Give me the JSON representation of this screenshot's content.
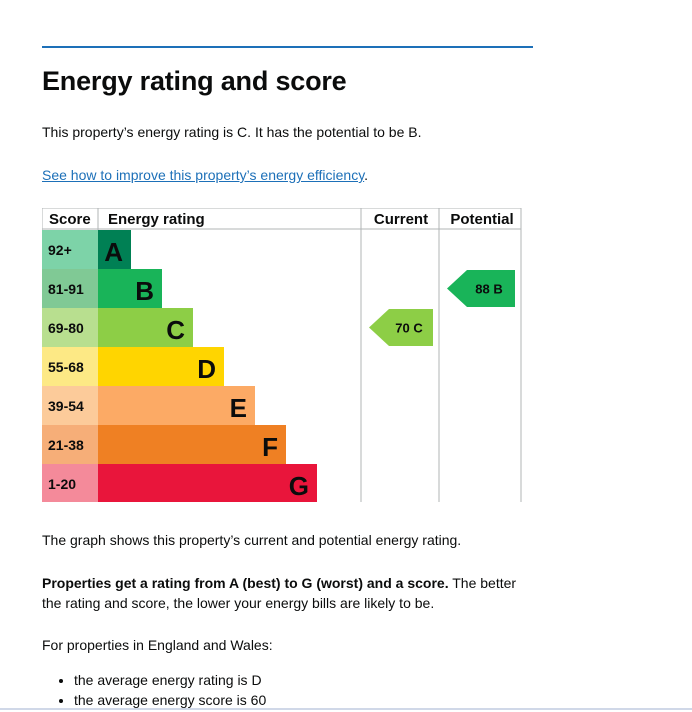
{
  "title": "Energy rating and score",
  "intro": "This property’s energy rating is C. It has the potential to be B.",
  "improve_link": "See how to improve this property’s energy efficiency",
  "improve_link_suffix": ".",
  "graph_caption": "The graph shows this property’s current and potential energy rating.",
  "properties_bold": "Properties get a rating from A (best) to G (worst) and a score.",
  "properties_rest": " The better the rating and score, the lower your energy bills are likely to be.",
  "england_wales": "For properties in England and Wales:",
  "averages": [
    "the average energy rating is D",
    "the average energy score is 60"
  ],
  "chart_data": {
    "type": "bar",
    "headers": {
      "score": "Score",
      "rating": "Energy rating",
      "current": "Current",
      "potential": "Potential"
    },
    "bands": [
      {
        "range": "92+",
        "letter": "A",
        "score_bg": "#7dd3a8",
        "bar": "#008054"
      },
      {
        "range": "81-91",
        "letter": "B",
        "score_bg": "#80c995",
        "bar": "#19b459"
      },
      {
        "range": "69-80",
        "letter": "C",
        "score_bg": "#b8df8f",
        "bar": "#8dce46"
      },
      {
        "range": "55-68",
        "letter": "D",
        "score_bg": "#fde985",
        "bar": "#ffd500"
      },
      {
        "range": "39-54",
        "letter": "E",
        "score_bg": "#fccb9a",
        "bar": "#fcaa65"
      },
      {
        "range": "21-38",
        "letter": "F",
        "score_bg": "#f6ae78",
        "bar": "#ef8023"
      },
      {
        "range": "1-20",
        "letter": "G",
        "score_bg": "#f48a9a",
        "bar": "#e9153b"
      }
    ],
    "current": {
      "score": 70,
      "letter": "C",
      "label": "70 C",
      "color": "#8dce46"
    },
    "potential": {
      "score": 88,
      "letter": "B",
      "label": "88 B",
      "color": "#19b459"
    }
  }
}
